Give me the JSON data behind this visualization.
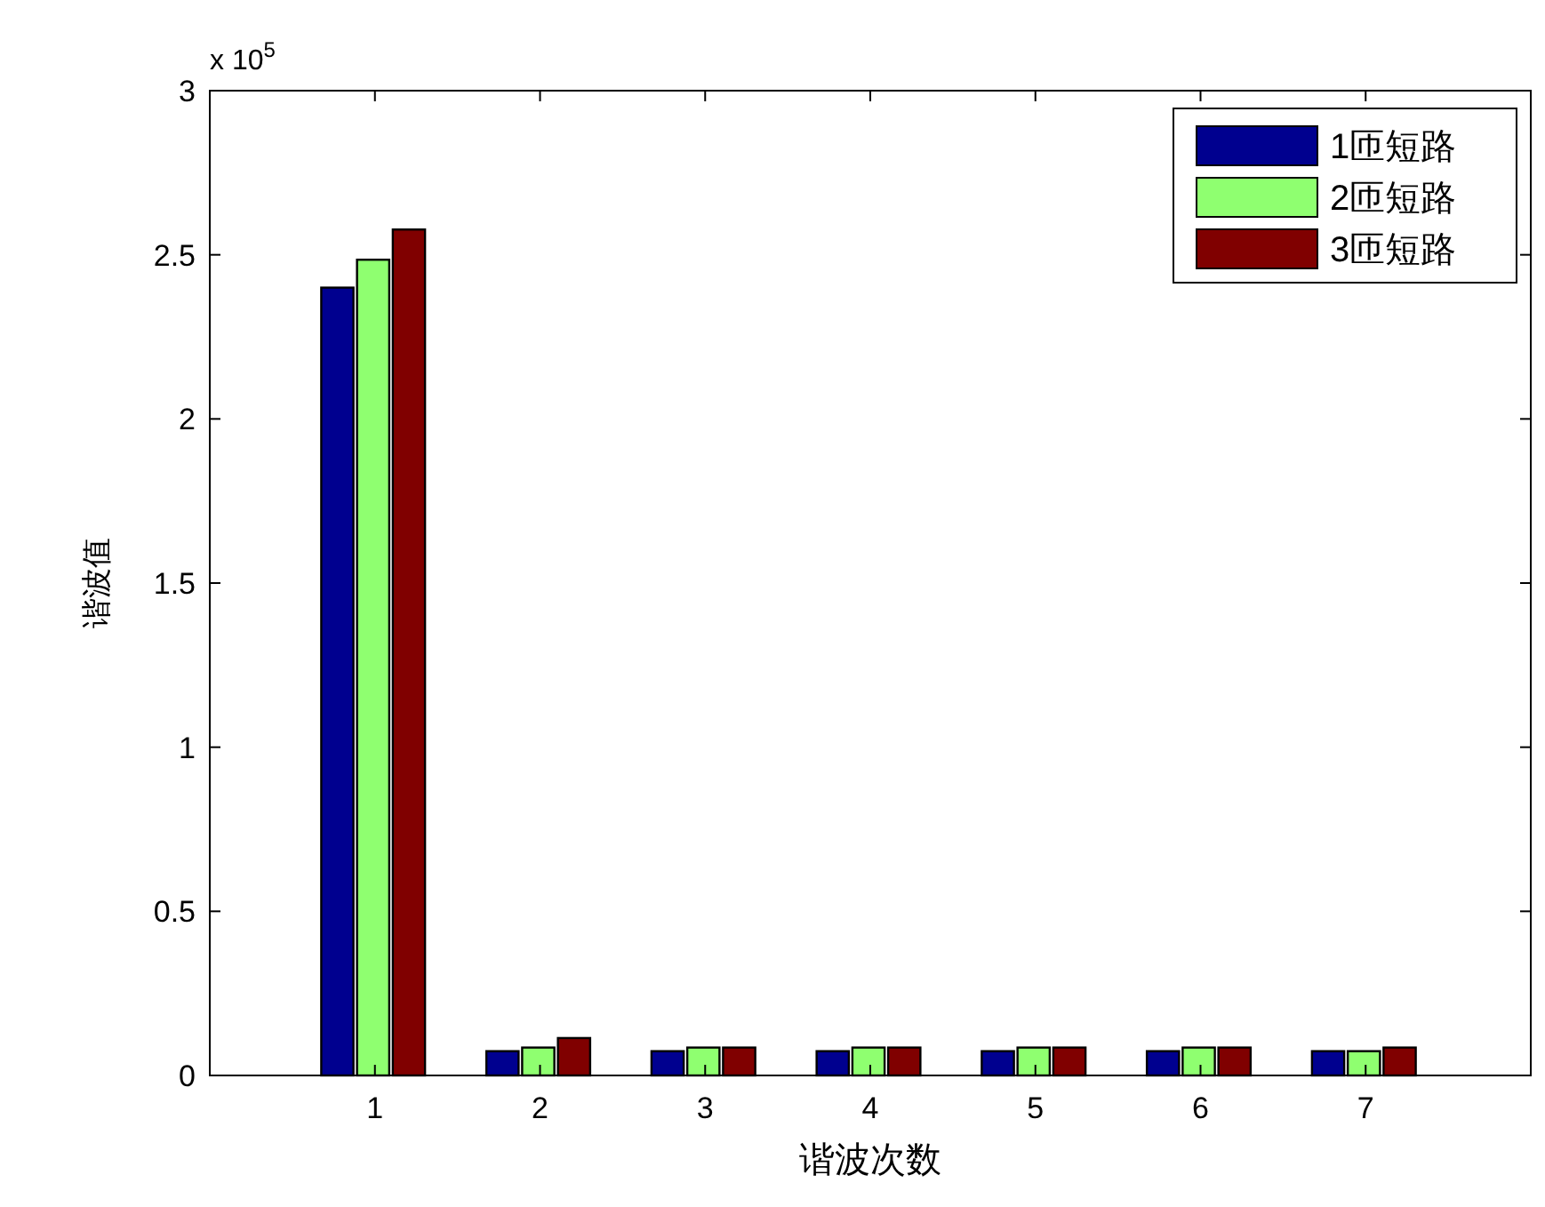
{
  "chart_data": {
    "type": "bar",
    "xlabel": "谐波次数",
    "ylabel": "谐波值",
    "annotations": [
      "x 10$^{5}$"
    ],
    "categories": [
      "1",
      "2",
      "3",
      "4",
      "5",
      "6",
      "7"
    ],
    "series": [
      {
        "name": "1匝短路",
        "color": "#00008f",
        "values": [
          2.4,
          0.074,
          0.074,
          0.074,
          0.074,
          0.074,
          0.074
        ]
      },
      {
        "name": "2匝短路",
        "color": "#8fff70",
        "values": [
          2.485,
          0.085,
          0.085,
          0.085,
          0.085,
          0.085,
          0.074
        ]
      },
      {
        "name": "3匝短路",
        "color": "#800000",
        "values": [
          2.577,
          0.114,
          0.085,
          0.085,
          0.085,
          0.085,
          0.085
        ]
      }
    ],
    "ylim": [
      0,
      3
    ],
    "yticks": [
      0,
      0.5,
      1,
      1.5,
      2,
      2.5,
      3
    ],
    "grid": false,
    "legend": "top right"
  }
}
